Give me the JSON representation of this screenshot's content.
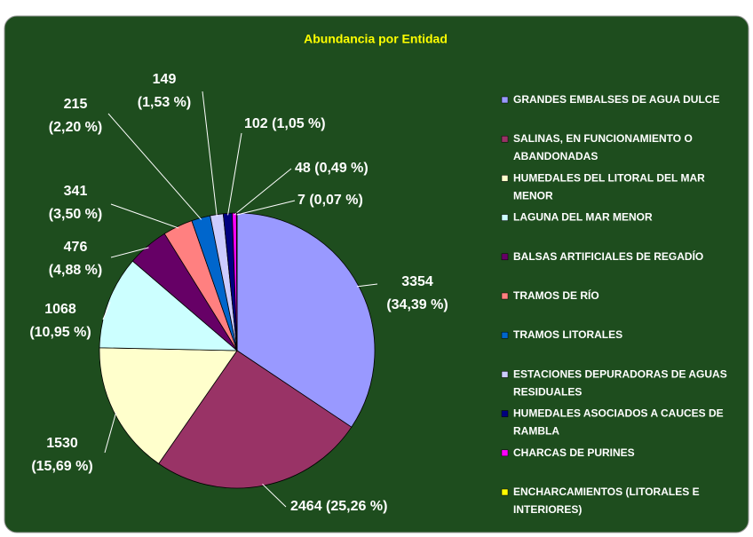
{
  "chart_data": {
    "type": "pie",
    "title": "Abundancia por Entidad",
    "categories": [
      "GRANDES EMBALSES DE AGUA DULCE",
      "SALINAS, EN FUNCIONAMIENTO O ABANDONADAS",
      "HUMEDALES DEL LITORAL DEL MAR MENOR",
      "LAGUNA DEL MAR MENOR",
      "BALSAS ARTIFICIALES DE REGADÍO",
      "TRAMOS DE RÍO",
      "TRAMOS LITORALES",
      "ESTACIONES DEPURADORAS DE AGUAS RESIDUALES",
      "HUMEDALES ASOCIADOS A CAUCES DE RAMBLA",
      "CHARCAS DE PURINES",
      "ENCHARCAMIENTOS (LITORALES E INTERIORES)"
    ],
    "values": [
      3354,
      2464,
      1530,
      1068,
      476,
      341,
      215,
      149,
      102,
      48,
      7
    ],
    "value_labels": [
      "3354 (34,39 %)",
      "2464 (25,26 %)",
      "1530 (15,69 %)",
      "1068 (10,95 %)",
      "476 (4,88 %)",
      "341 (3,50 %)",
      "215 (2,20 %)",
      "149 (1,53 %)",
      "102 (1,05 %)",
      "48 (0,49 %)",
      "7 (0,07 %)"
    ],
    "colors": [
      "#9999ff",
      "#993366",
      "#ffffcc",
      "#ccffff",
      "#660066",
      "#ff8080",
      "#0066cc",
      "#ccccff",
      "#000080",
      "#ff00ff",
      "#ffff00"
    ],
    "legend": "right"
  }
}
